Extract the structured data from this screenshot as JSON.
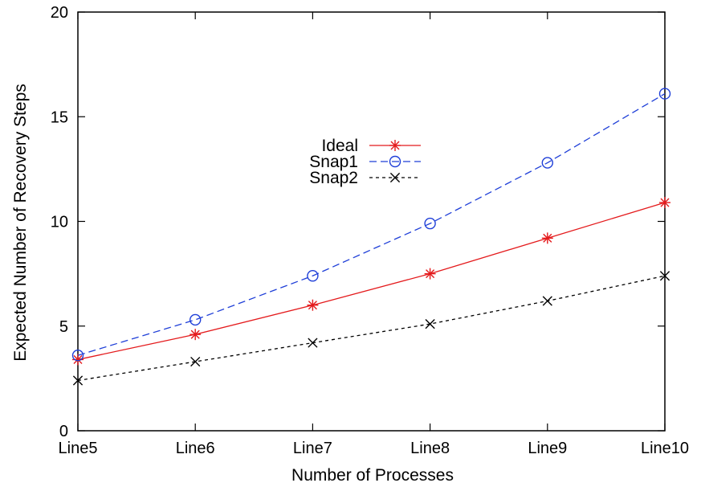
{
  "chart_data": {
    "type": "line",
    "title": "",
    "xlabel": "Number of Processes",
    "ylabel": "Expected Number of Recovery Steps",
    "categories": [
      "Line5",
      "Line6",
      "Line7",
      "Line8",
      "Line9",
      "Line10"
    ],
    "ylim": [
      0,
      20
    ],
    "yticks": [
      0,
      5,
      10,
      15,
      20
    ],
    "grid": false,
    "legend_position": "center",
    "series": [
      {
        "name": "Ideal",
        "values": [
          3.4,
          4.6,
          6.0,
          7.5,
          9.2,
          10.9
        ],
        "color": "#e41a1c",
        "marker": "asterisk",
        "dash": "solid"
      },
      {
        "name": "Snap1",
        "values": [
          3.6,
          5.3,
          7.4,
          9.9,
          12.8,
          16.1
        ],
        "color": "#1f3fd8",
        "marker": "circle",
        "dash": "dashed"
      },
      {
        "name": "Snap2",
        "values": [
          2.4,
          3.3,
          4.2,
          5.1,
          6.2,
          7.4
        ],
        "color": "#000000",
        "marker": "cross",
        "dash": "dotted"
      }
    ]
  }
}
